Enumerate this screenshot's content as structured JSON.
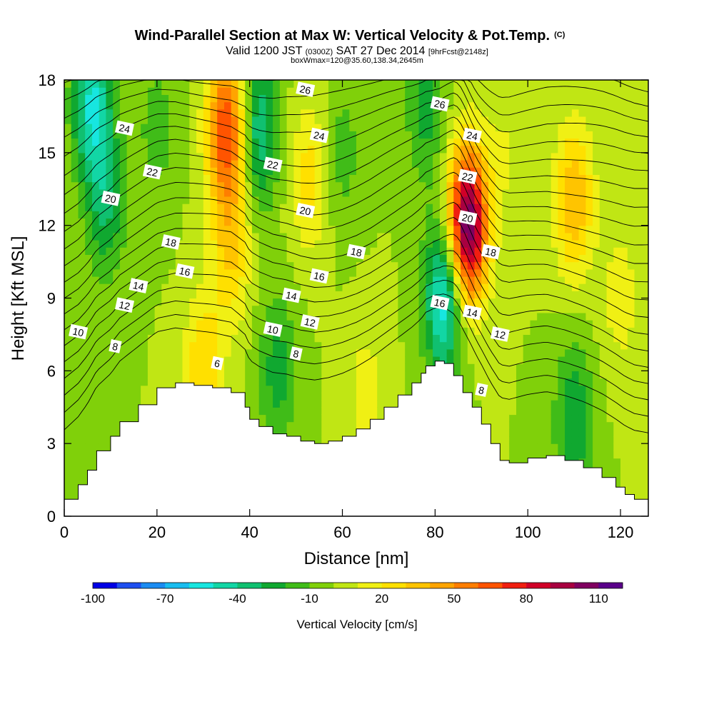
{
  "chart_data": {
    "type": "heatmap",
    "title": "Wind-Parallel Section at Max W: Vertical Velocity & Pot.Temp.",
    "title_mark": "(C)",
    "subtitle_parts": [
      "Valid 1200 JST ",
      "(0300Z)",
      " SAT 27 Dec 2014 ",
      "[9hrFcst@2148z]"
    ],
    "subtitle2": "boxWmax=120@35.60,138.34,2645m",
    "xlabel": "Distance [nm]",
    "ylabel": "Height [Kft MSL]",
    "xlim": [
      0,
      126
    ],
    "ylim": [
      0,
      18
    ],
    "x_ticks": [
      0,
      20,
      40,
      60,
      80,
      100,
      120
    ],
    "y_ticks": [
      0,
      3,
      6,
      9,
      12,
      15,
      18
    ],
    "colorbar": {
      "label": "Vertical Velocity [cm/s]",
      "range": [
        -100,
        120
      ],
      "step": 10,
      "tick_values": [
        -100,
        -70,
        -40,
        -10,
        20,
        50,
        80,
        110
      ],
      "colors": [
        "#0000e6",
        "#1e4ff0",
        "#1b8cf2",
        "#19bdf0",
        "#17e6e0",
        "#12d6a5",
        "#10c070",
        "#10a830",
        "#40bc18",
        "#80d00a",
        "#c0e614",
        "#f0f014",
        "#ffe000",
        "#ffc400",
        "#ffa400",
        "#ff7e00",
        "#ff5400",
        "#f01e10",
        "#d00028",
        "#a80040",
        "#800060",
        "#5a008a"
      ]
    },
    "velocity_features_cm_s": [
      {
        "x": 0,
        "z": 5,
        "w": -10
      },
      {
        "x": 6,
        "z": 17,
        "w": -50
      },
      {
        "x": 9,
        "z": 13,
        "w": -30
      },
      {
        "x": 20,
        "z": 16,
        "w": -15
      },
      {
        "x": 30,
        "z": 6,
        "w": 30
      },
      {
        "x": 35,
        "z": 16,
        "w": 70
      },
      {
        "x": 36,
        "z": 11,
        "w": 30
      },
      {
        "x": 42,
        "z": 16,
        "w": -40
      },
      {
        "x": 46,
        "z": 6,
        "w": -25
      },
      {
        "x": 53,
        "z": 14,
        "w": 25
      },
      {
        "x": 60,
        "z": 15,
        "w": -15
      },
      {
        "x": 65,
        "z": 5,
        "w": 15
      },
      {
        "x": 78,
        "z": 17,
        "w": -25
      },
      {
        "x": 82,
        "z": 9,
        "w": -60
      },
      {
        "x": 87,
        "z": 12,
        "w": 115
      },
      {
        "x": 95,
        "z": 15,
        "w": 10
      },
      {
        "x": 110,
        "z": 4,
        "w": -30
      },
      {
        "x": 110,
        "z": 13,
        "w": 40
      },
      {
        "x": 120,
        "z": 9,
        "w": 15
      }
    ],
    "terrain_kft": {
      "x": [
        0,
        3,
        5,
        7,
        10,
        12,
        16,
        20,
        24,
        28,
        32,
        36,
        39,
        40,
        42,
        45,
        48,
        51,
        54,
        57,
        60,
        63,
        66,
        69,
        72,
        75,
        77,
        78,
        80,
        82,
        84,
        86,
        88,
        90,
        92,
        94,
        96,
        100,
        104,
        108,
        112,
        116,
        119,
        121,
        123,
        126
      ],
      "z": [
        0.7,
        1.3,
        1.9,
        2.7,
        3.3,
        3.9,
        4.6,
        5.3,
        5.5,
        5.4,
        5.3,
        5.1,
        4.5,
        4.0,
        3.7,
        3.4,
        3.3,
        3.1,
        3.0,
        3.1,
        3.3,
        3.6,
        4.0,
        4.5,
        5.0,
        5.5,
        5.9,
        6.2,
        6.4,
        6.3,
        5.8,
        5.1,
        4.5,
        3.8,
        3.0,
        2.3,
        2.2,
        2.4,
        2.5,
        2.3,
        2.0,
        1.6,
        1.2,
        0.9,
        0.7,
        0.6
      ]
    },
    "theta_contours": {
      "levels": [
        4,
        5,
        6,
        7,
        8,
        9,
        10,
        11,
        12,
        13,
        14,
        15,
        16,
        17,
        18,
        19,
        20,
        21,
        22,
        23,
        24,
        25,
        26,
        27,
        28
      ],
      "labels": [
        {
          "text": "6",
          "x": 33,
          "z": 6.3
        },
        {
          "text": "8",
          "x": 11,
          "z": 7.0
        },
        {
          "text": "8",
          "x": 50,
          "z": 6.7
        },
        {
          "text": "8",
          "x": 90,
          "z": 5.2
        },
        {
          "text": "10",
          "x": 3,
          "z": 7.6
        },
        {
          "text": "10",
          "x": 45,
          "z": 7.7
        },
        {
          "text": "12",
          "x": 13,
          "z": 8.7
        },
        {
          "text": "12",
          "x": 53,
          "z": 8.0
        },
        {
          "text": "12",
          "x": 94,
          "z": 7.5
        },
        {
          "text": "14",
          "x": 16,
          "z": 9.5
        },
        {
          "text": "14",
          "x": 49,
          "z": 9.1
        },
        {
          "text": "14",
          "x": 88,
          "z": 8.4
        },
        {
          "text": "16",
          "x": 26,
          "z": 10.1
        },
        {
          "text": "16",
          "x": 55,
          "z": 9.9
        },
        {
          "text": "16",
          "x": 81,
          "z": 8.8
        },
        {
          "text": "18",
          "x": 23,
          "z": 11.3
        },
        {
          "text": "18",
          "x": 63,
          "z": 10.9
        },
        {
          "text": "18",
          "x": 92,
          "z": 10.9
        },
        {
          "text": "20",
          "x": 10,
          "z": 13.1
        },
        {
          "text": "20",
          "x": 52,
          "z": 12.6
        },
        {
          "text": "20",
          "x": 87,
          "z": 12.3
        },
        {
          "text": "22",
          "x": 19,
          "z": 14.2
        },
        {
          "text": "22",
          "x": 45,
          "z": 14.5
        },
        {
          "text": "22",
          "x": 87,
          "z": 14.0
        },
        {
          "text": "24",
          "x": 13,
          "z": 16.0
        },
        {
          "text": "24",
          "x": 55,
          "z": 15.7
        },
        {
          "text": "24",
          "x": 88,
          "z": 15.7
        },
        {
          "text": "26",
          "x": 52,
          "z": 17.6
        },
        {
          "text": "26",
          "x": 81,
          "z": 17.0
        }
      ]
    }
  }
}
